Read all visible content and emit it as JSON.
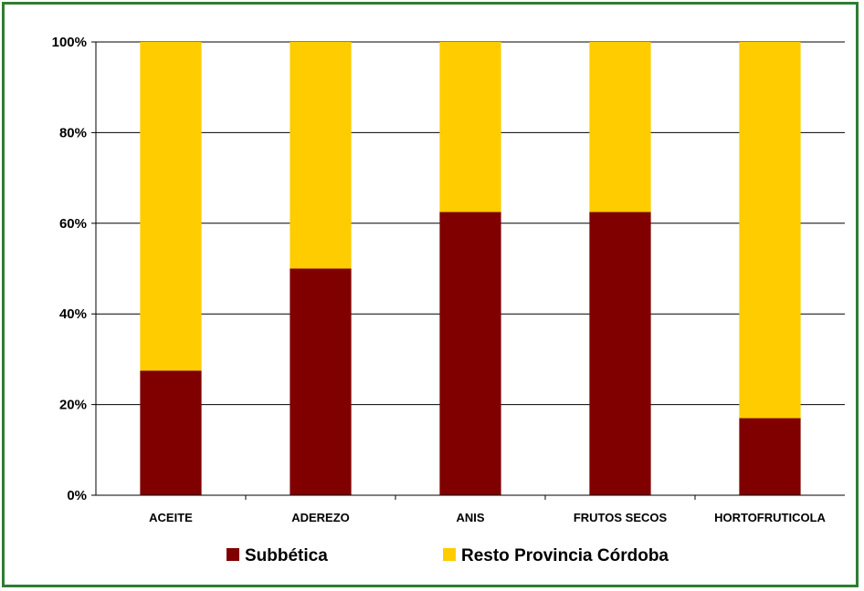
{
  "chart_data": {
    "type": "bar",
    "stacked": true,
    "categories": [
      "ACEITE",
      "ADEREZO",
      "ANIS",
      "FRUTOS SECOS",
      "HORTOFRUTICOLA"
    ],
    "series": [
      {
        "name": "Subbética",
        "values": [
          27.5,
          50,
          62.5,
          62.5,
          17
        ],
        "color": "#800000"
      },
      {
        "name": "Resto Provincia Córdoba",
        "values": [
          72.5,
          50,
          37.5,
          37.5,
          83
        ],
        "color": "#ffcc00"
      }
    ],
    "ylim": [
      0,
      100
    ],
    "yticks": [
      "0%",
      "20%",
      "40%",
      "60%",
      "80%",
      "100%"
    ],
    "grid": true,
    "legend_position": "bottom"
  },
  "colors": {
    "frame": "#2e7d32",
    "grid": "#000000"
  }
}
